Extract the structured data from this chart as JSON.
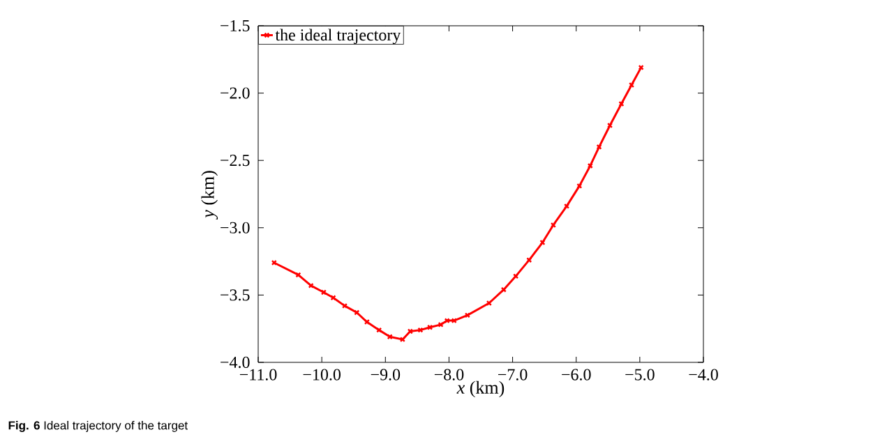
{
  "chart_data": {
    "type": "line",
    "xlabel": "*x* (km)",
    "ylabel": "*y* (km)",
    "annotations": [
      "**Fig. 6** Ideal trajectory of the target"
    ],
    "xlim": [
      -11,
      -4
    ],
    "ylim": [
      -4,
      -1.5
    ],
    "xticks": [
      {
        "value": -11,
        "label": "−11.0"
      },
      {
        "value": -10,
        "label": "−10.0"
      },
      {
        "value": -9,
        "label": "−9.0"
      },
      {
        "value": -8,
        "label": "−8.0"
      },
      {
        "value": -7,
        "label": "−7.0"
      },
      {
        "value": -6,
        "label": "−6.0"
      },
      {
        "value": -5,
        "label": "−5.0"
      },
      {
        "value": -4,
        "label": "−4.0"
      }
    ],
    "yticks": [
      {
        "value": -4,
        "label": "−4.0"
      },
      {
        "value": -3.5,
        "label": "−3.5"
      },
      {
        "value": -3,
        "label": "−3.0"
      },
      {
        "value": -2.5,
        "label": "−2.5"
      },
      {
        "value": -2,
        "label": "−2.0"
      },
      {
        "value": -1.5,
        "label": "−1.5"
      }
    ],
    "grid": false,
    "legend": "top left",
    "marker": "cross",
    "line_style": "solid",
    "series": [
      {
        "name": "the ideal trajectory",
        "color": "#ff0000",
        "x": [
          -10.75,
          -10.37,
          -10.17,
          -9.97,
          -9.82,
          -9.64,
          -9.45,
          -9.29,
          -9.1,
          -8.93,
          -8.73,
          -8.61,
          -8.45,
          -8.3,
          -8.13,
          -8.03,
          -7.92,
          -7.71,
          -7.37,
          -7.14,
          -6.95,
          -6.74,
          -6.53,
          -6.36,
          -6.15,
          -5.95,
          -5.78,
          -5.64,
          -5.47,
          -5.29,
          -5.13,
          -4.98
        ],
        "values": [
          -3.26,
          -3.35,
          -3.43,
          -3.48,
          -3.52,
          -3.58,
          -3.63,
          -3.7,
          -3.76,
          -3.81,
          -3.83,
          -3.77,
          -3.76,
          -3.74,
          -3.72,
          -3.69,
          -3.69,
          -3.65,
          -3.56,
          -3.46,
          -3.36,
          -3.24,
          -3.11,
          -2.98,
          -2.84,
          -2.69,
          -2.54,
          -2.4,
          -2.24,
          -2.08,
          -1.94,
          -1.81
        ]
      }
    ]
  }
}
